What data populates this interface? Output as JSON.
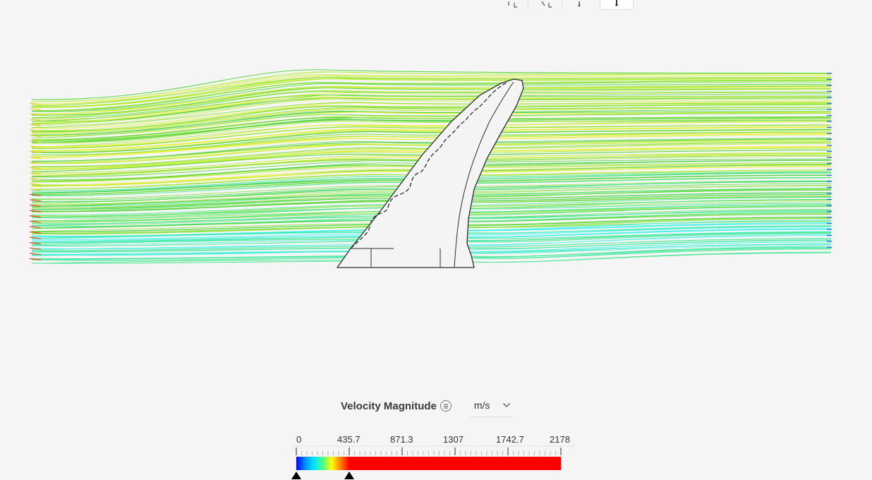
{
  "toolbar": {
    "buttons": [
      {
        "name": "fit-view-icon"
      },
      {
        "name": "zoom-region-icon"
      },
      {
        "name": "probe-icon"
      },
      {
        "name": "pointer-icon",
        "active": true
      }
    ]
  },
  "viewport": {
    "streamline_colors": [
      "#3ff2e6",
      "#41e88f",
      "#4ad43a",
      "#7fe22c",
      "#b4ec2a",
      "#e2f12c",
      "#f2e33a"
    ],
    "geometry_stroke": "#2d2d2d",
    "geometry_fill": "#ffffff"
  },
  "legend": {
    "title": "Velocity Magnitude",
    "menu_icon": "list-icon",
    "unit": "m/s",
    "unit_icon": "chevron-down-icon",
    "scale_min": 0,
    "scale_max": 2178,
    "tick_labels": [
      "0",
      "435.7",
      "871.3",
      "1307",
      "1742.7",
      "2178"
    ],
    "handles": [
      0,
      435.7
    ],
    "gradient_colors": [
      "#0000ff",
      "#0090ff",
      "#00e5ff",
      "#4dff80",
      "#ffff00",
      "#ff8000",
      "#ff0000"
    ]
  }
}
